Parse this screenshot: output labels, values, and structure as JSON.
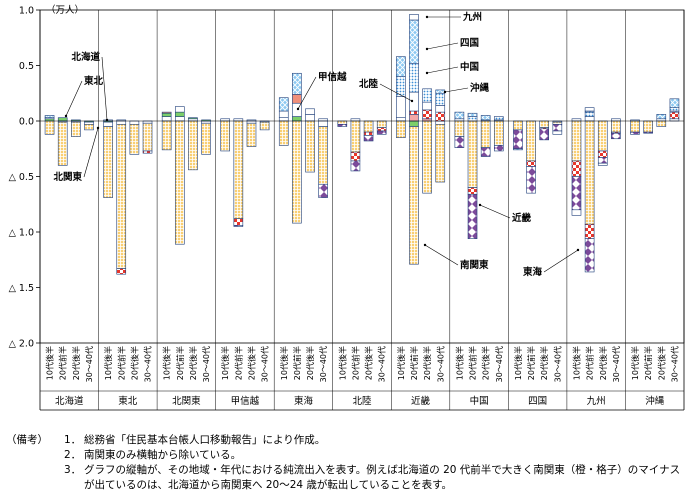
{
  "chart_data": {
    "type": "bar",
    "stacked": true,
    "unit_label": "（万人）",
    "ylim": [
      -2.0,
      1.0
    ],
    "yticks": [
      {
        "value": 1.0,
        "label": "1.0"
      },
      {
        "value": 0.5,
        "label": "0.5"
      },
      {
        "value": 0.0,
        "label": "0.0"
      },
      {
        "value": -0.5,
        "label": "△ 0.5"
      },
      {
        "value": -1.0,
        "label": "△ 1.0"
      },
      {
        "value": -1.5,
        "label": "△ 1.5"
      },
      {
        "value": -2.0,
        "label": "△ 2.0"
      }
    ],
    "age_labels": [
      "10代後半",
      "20代前半",
      "20代後半",
      "30〜40代"
    ],
    "regions": [
      "北海道",
      "東北",
      "北関東",
      "甲信越",
      "東海",
      "北陸",
      "近畿",
      "中国",
      "四国",
      "九州",
      "沖縄"
    ],
    "destination_order": [
      "北海道",
      "東北",
      "北関東",
      "南関東",
      "甲信越",
      "北陸",
      "東海",
      "近畿",
      "中国",
      "四国",
      "九州",
      "沖縄"
    ],
    "legend_labels": [
      "北海道",
      "東北",
      "北関東",
      "南関東",
      "甲信越",
      "北陸",
      "東海",
      "近畿",
      "中国",
      "四国",
      "九州",
      "沖縄"
    ],
    "styles": {
      "北海道": {
        "color": "#ffffff",
        "pattern": "plain"
      },
      "東北": {
        "color": "#7ccf6a",
        "pattern": "plain"
      },
      "北関東": {
        "color": "#ffffff",
        "pattern": "plain"
      },
      "南関東": {
        "color": "#f6c667",
        "pattern": "grid"
      },
      "甲信越": {
        "color": "#f08f7a",
        "pattern": "plain"
      },
      "北陸": {
        "color": "#f2a7a7",
        "pattern": "plain"
      },
      "東海": {
        "color": "#e8372c",
        "pattern": "check"
      },
      "近畿": {
        "color": "#7b4a9a",
        "pattern": "diamond"
      },
      "中国": {
        "color": "#ffffff",
        "pattern": "plain"
      },
      "四国": {
        "color": "#3d8fd6",
        "pattern": "dots"
      },
      "九州": {
        "color": "#5aaee8",
        "pattern": "cross"
      },
      "沖縄": {
        "color": "#ffffff",
        "pattern": "plain"
      }
    },
    "values": {
      "北海道": [
        {
          "北関東": 0.01,
          "南関東": -0.12,
          "東北": 0.02,
          "九州": 0.02
        },
        {
          "東北": 0.03,
          "南関東": -0.39,
          "北関東": -0.01
        },
        {
          "南関東": -0.13,
          "北関東": -0.01,
          "東北": 0.01
        },
        {
          "南関東": -0.05,
          "北関東": -0.02,
          "東北": -0.01
        }
      ],
      "東北": [
        {
          "北海道": 0.01,
          "南関東": -0.64,
          "北関東": -0.04,
          "東北": -0.01
        },
        {
          "北海道": 0.01,
          "南関東": -1.3,
          "東海": -0.05,
          "北関東": -0.03
        },
        {
          "南関東": -0.27,
          "北関東": -0.03
        },
        {
          "南関東": -0.25,
          "東海": -0.02,
          "北関東": -0.02
        }
      ],
      "北関東": [
        {
          "北海道": 0.04,
          "東北": 0.03,
          "甲信越": 0.01,
          "南関東": -0.26
        },
        {
          "中国": 0.05,
          "北海道": 0.04,
          "東北": 0.04,
          "南関東": -1.11
        },
        {
          "北海道": 0.02,
          "東北": 0.01,
          "南関東": -0.44
        },
        {
          "東北": 0.01,
          "南関東": -0.28,
          "北海道": -0.02
        }
      ],
      "甲信越": [
        {
          "北海道": 0.02,
          "南関東": -0.27
        },
        {
          "北海道": 0.02,
          "南関東": -0.88,
          "東海": -0.06,
          "近畿": -0.01
        },
        {
          "北海道": 0.01,
          "南関東": -0.21,
          "北関東": -0.02
        },
        {
          "南関東": -0.07,
          "北関東": -0.01
        }
      ],
      "東海": [
        {
          "北海道": 0.03,
          "九州": 0.12,
          "北関東": 0.06,
          "南関東": -0.22
        },
        {
          "東北": 0.04,
          "甲信越": 0.08,
          "九州": 0.19,
          "北関東": 0.12,
          "南関東": -0.92
        },
        {
          "中国": 0.05,
          "北関東": 0.06,
          "南関東": -0.46
        },
        {
          "北海道": 0.02,
          "南関東": -0.52,
          "近畿": -0.12,
          "北関東": -0.05
        }
      ],
      "北陸": [
        {
          "南関東": -0.03,
          "近畿": -0.02
        },
        {
          "北海道": 0.02,
          "南関東": -0.28,
          "東海": -0.08,
          "近畿": -0.09
        },
        {
          "南関東": -0.1,
          "東海": -0.03,
          "近畿": -0.05
        },
        {
          "南関東": -0.06,
          "東海": -0.03,
          "近畿": -0.03
        }
      ],
      "近畿": [
        {
          "北海道": 0.03,
          "中国": 0.19,
          "四国": 0.18,
          "九州": 0.18,
          "南関東": -0.15
        },
        {
          "東海": 0.03,
          "北陸": 0.06,
          "沖縄": 0.05,
          "中国": 0.17,
          "四国": 0.26,
          "九州": 0.39,
          "南関東": -1.24,
          "東北": -0.05
        },
        {
          "北陸": 0.02,
          "東海": 0.08,
          "中国": 0.07,
          "四国": 0.12,
          "南関東": -0.65
        },
        {
          "九州": 0.03,
          "東海": 0.08,
          "中国": 0.06,
          "四国": 0.11,
          "南関東": -0.52,
          "北関東": -0.03
        }
      ],
      "中国": [
        {
          "北海道": 0.02,
          "九州": 0.06,
          "南関東": -0.14,
          "近畿": -0.1
        },
        {
          "四国": 0.04,
          "九州": 0.03,
          "南関東": -0.6,
          "近畿": -0.4,
          "東海": -0.06
        },
        {
          "北海道": 0.01,
          "九州": 0.04,
          "南関東": -0.24,
          "近畿": -0.08
        },
        {
          "北海道": 0.01,
          "四国": 0.03,
          "南関東": -0.22,
          "近畿": -0.05
        }
      ],
      "四国": [
        {
          "南関東": -0.08,
          "近畿": -0.17,
          "九州": -0.01
        },
        {
          "南関東": -0.36,
          "近畿": -0.24,
          "東海": -0.05
        },
        {
          "南関東": -0.06,
          "近畿": -0.1,
          "東海": -0.01
        },
        {
          "北海道": -0.01,
          "南関東": -0.02,
          "近畿": -0.06,
          "中国": -0.03
        }
      ],
      "九州": [
        {
          "北海道": 0.02,
          "南関東": -0.36,
          "東海": -0.14,
          "近畿": -0.3,
          "中国": -0.05
        },
        {
          "北海道": 0.04,
          "四国": 0.04,
          "沖縄": 0.03,
          "九州": 0.01,
          "南関東": -0.93,
          "東海": -0.13,
          "近畿": -0.3
        },
        {
          "南関東": -0.27,
          "東海": -0.06,
          "近畿": -0.05,
          "中国": -0.02
        },
        {
          "北海道": 0.02,
          "南関東": -0.1,
          "近畿": -0.05,
          "東海": -0.01
        }
      ],
      "沖縄": [
        {
          "北海道": 0.01,
          "南関東": -0.1,
          "近畿": -0.02
        },
        {
          "南関東": -0.1,
          "近畿": -0.01
        },
        {
          "北海道": 0.02,
          "九州": 0.04,
          "南関東": -0.05
        },
        {
          "北海道": 0.02,
          "九州": 0.08,
          "東海": 0.06,
          "四国": 0.03,
          "近畿": 0.01
        }
      ]
    },
    "annotations": [
      {
        "text": "東北",
        "target": "北海道/10代後半"
      },
      {
        "text": "北海道",
        "target": "東北/10代後半"
      },
      {
        "text": "北関東",
        "target": "北海道/30〜40代"
      },
      {
        "text": "甲信越",
        "target": "東海/20代前半"
      },
      {
        "text": "北陸",
        "target": "近畿/20代前半"
      },
      {
        "text": "九州",
        "target": "近畿/20代前半"
      },
      {
        "text": "四国",
        "target": "近畿/20代前半"
      },
      {
        "text": "中国",
        "target": "近畿/20代前半"
      },
      {
        "text": "沖縄",
        "target": "近畿/20代後半"
      },
      {
        "text": "近畿",
        "target": "中国/20代前半"
      },
      {
        "text": "南関東",
        "target": "近畿/20代前半"
      },
      {
        "text": "東海",
        "target": "九州/20代前半"
      }
    ]
  },
  "notes": {
    "heading": "（備考）",
    "items": [
      {
        "num": "1．",
        "text": "総務省「住民基本台帳人口移動報告」により作成。"
      },
      {
        "num": "2．",
        "text": "南関東のみ横軸から除いている。"
      },
      {
        "num": "3．",
        "text": "グラフの縦軸が、その地域・年代における純流出入を表す。例えば北海道の 20 代前半で大きく南関東（橙・格子）のマイナスが出ているのは、北海道から南関東へ 20〜24 歳が転出していることを表す。"
      }
    ]
  }
}
